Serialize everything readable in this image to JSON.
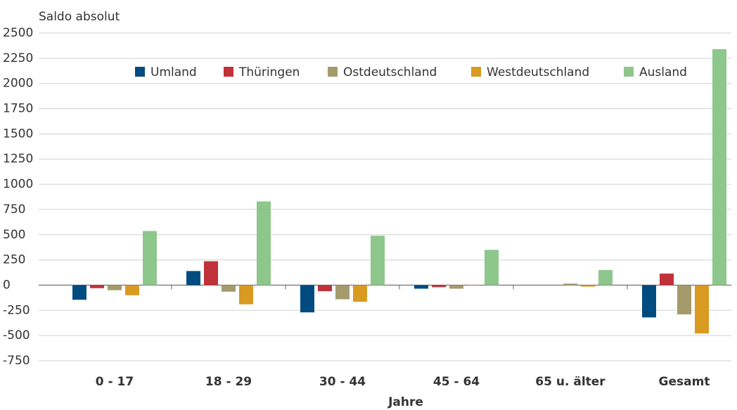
{
  "chart_data": {
    "type": "bar",
    "title": "Saldo absolut",
    "x_label": "Jahre",
    "categories": [
      "0 - 17",
      "18 - 29",
      "30 - 44",
      "45 - 64",
      "65 u. älter",
      "Gesamt"
    ],
    "series": [
      {
        "name": "Umland",
        "color": "#004b80",
        "values": [
          -145,
          140,
          -270,
          -35,
          0,
          -320
        ]
      },
      {
        "name": "Thüringen",
        "color": "#c0313a",
        "values": [
          -30,
          237,
          -60,
          -20,
          0,
          115
        ]
      },
      {
        "name": "Ostdeutschland",
        "color": "#a59a6c",
        "values": [
          -50,
          -65,
          -140,
          -35,
          15,
          -290
        ]
      },
      {
        "name": "Westdeutschland",
        "color": "#d99a22",
        "values": [
          -100,
          -190,
          -165,
          -5,
          -15,
          -480
        ]
      },
      {
        "name": "Ausland",
        "color": "#8dc78b",
        "values": [
          537,
          830,
          490,
          350,
          150,
          2340
        ]
      }
    ],
    "ylim": [
      -750,
      2500
    ],
    "yticks": [
      -750,
      -500,
      -250,
      0,
      250,
      500,
      750,
      1000,
      1250,
      1500,
      1750,
      2000,
      2250,
      2500
    ],
    "grid": true,
    "legend": "top"
  }
}
